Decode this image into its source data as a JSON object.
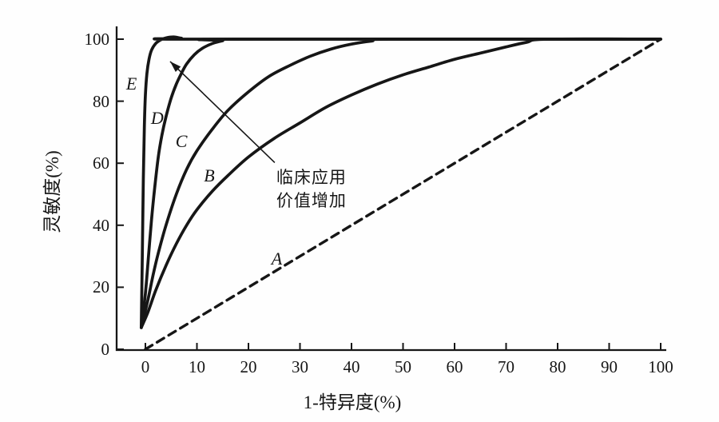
{
  "figure": {
    "background_color": "#fefefe",
    "ink_color": "#161616"
  },
  "chart_data": {
    "type": "line",
    "title": "",
    "xlabel": "1-特异度(%)",
    "ylabel": "灵敏度(%)",
    "xlim": [
      0,
      100
    ],
    "ylim": [
      0,
      100
    ],
    "x_ticks": [
      0,
      10,
      20,
      30,
      40,
      50,
      60,
      70,
      80,
      90,
      100
    ],
    "y_ticks": [
      0,
      20,
      40,
      60,
      80,
      100
    ],
    "grid": false,
    "legend_position": "none",
    "series": [
      {
        "name": "A",
        "label": "A",
        "line_style": "dashed",
        "label_xy": [
          25.5,
          29
        ],
        "points": [
          [
            0,
            0
          ],
          [
            100,
            100
          ]
        ]
      },
      {
        "name": "B",
        "label": "B",
        "line_style": "solid",
        "label_xy": [
          12.4,
          56
        ],
        "points": [
          [
            -0.8,
            7
          ],
          [
            0.5,
            12
          ],
          [
            2,
            19
          ],
          [
            4,
            27
          ],
          [
            6,
            34
          ],
          [
            8,
            40
          ],
          [
            10,
            45
          ],
          [
            13,
            51
          ],
          [
            16,
            56
          ],
          [
            20,
            62
          ],
          [
            25,
            68
          ],
          [
            30,
            73
          ],
          [
            35,
            78
          ],
          [
            40,
            82
          ],
          [
            45,
            85.5
          ],
          [
            50,
            88.5
          ],
          [
            55,
            91
          ],
          [
            60,
            93.5
          ],
          [
            65,
            95.5
          ],
          [
            70,
            97.5
          ],
          [
            74,
            99
          ],
          [
            78,
            100
          ],
          [
            100,
            100
          ]
        ]
      },
      {
        "name": "C",
        "label": "C",
        "line_style": "solid",
        "label_xy": [
          7.0,
          67
        ],
        "points": [
          [
            -0.8,
            7
          ],
          [
            0.5,
            16
          ],
          [
            1.5,
            24
          ],
          [
            2.5,
            31
          ],
          [
            4,
            40
          ],
          [
            6,
            50
          ],
          [
            8,
            58
          ],
          [
            10,
            64
          ],
          [
            13,
            71
          ],
          [
            16,
            77
          ],
          [
            20,
            83
          ],
          [
            24,
            88
          ],
          [
            28,
            91.5
          ],
          [
            32,
            94.5
          ],
          [
            36,
            96.8
          ],
          [
            40,
            98.4
          ],
          [
            44,
            99.4
          ],
          [
            48,
            100
          ],
          [
            100,
            100
          ]
        ]
      },
      {
        "name": "D",
        "label": "D",
        "line_style": "solid",
        "label_xy": [
          2.3,
          74.5
        ],
        "points": [
          [
            -0.8,
            7
          ],
          [
            0,
            18
          ],
          [
            0.6,
            30
          ],
          [
            1.2,
            42
          ],
          [
            1.8,
            52
          ],
          [
            2.5,
            62
          ],
          [
            3.2,
            69
          ],
          [
            4,
            75
          ],
          [
            5,
            81
          ],
          [
            6,
            85.5
          ],
          [
            7,
            89
          ],
          [
            8,
            92
          ],
          [
            9.5,
            95
          ],
          [
            11,
            97
          ],
          [
            13,
            98.6
          ],
          [
            15,
            99.5
          ],
          [
            17,
            100
          ],
          [
            100,
            100
          ]
        ]
      },
      {
        "name": "E",
        "label": "E",
        "line_style": "solid",
        "label_xy": [
          -2.7,
          85.5
        ],
        "points": [
          [
            -0.8,
            7
          ],
          [
            -0.6,
            30
          ],
          [
            -0.4,
            55
          ],
          [
            -0.2,
            72
          ],
          [
            0,
            82
          ],
          [
            0.3,
            89
          ],
          [
            0.7,
            93.5
          ],
          [
            1.2,
            96.5
          ],
          [
            2,
            98.6
          ],
          [
            3,
            99.8
          ],
          [
            4,
            100.4
          ],
          [
            5.5,
            100.7
          ],
          [
            7,
            100.3
          ],
          [
            9,
            100
          ],
          [
            100,
            100
          ]
        ]
      }
    ],
    "annotation": {
      "lines": [
        "临床应用",
        "价值增加"
      ],
      "text_xy": [
        25.4,
        58.9
      ],
      "arrow_from_xy": [
        25.1,
        60.2
      ],
      "arrow_to_xy": [
        4.8,
        92.8
      ]
    }
  }
}
